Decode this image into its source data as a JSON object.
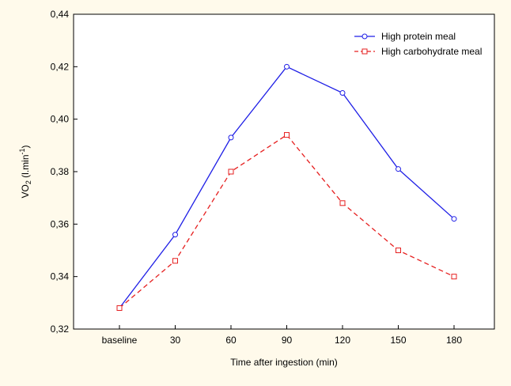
{
  "chart_data": {
    "type": "line",
    "title": "",
    "xlabel": "Time after ingestion (min)",
    "ylabel": "VO2 (l.min-1)",
    "ylabel_parts": {
      "base": "VO",
      "sub": "2",
      "rest": " (l.min",
      "sup": "-1",
      "end": ")"
    },
    "categories": [
      "baseline",
      "30",
      "60",
      "90",
      "120",
      "150",
      "180"
    ],
    "ylim": [
      0.32,
      0.44
    ],
    "yticks": [
      0.32,
      0.34,
      0.36,
      0.38,
      0.4,
      0.42,
      0.44
    ],
    "ytick_labels": [
      "0,32",
      "0,34",
      "0,36",
      "0,38",
      "0,40",
      "0,42",
      "0,44"
    ],
    "grid": false,
    "legend_position": "top-right",
    "series": [
      {
        "name": "High protein meal",
        "values": [
          0.328,
          0.356,
          0.393,
          0.42,
          0.41,
          0.381,
          0.362
        ],
        "color": "#1f1fe6",
        "line_style": "solid",
        "marker": "circle"
      },
      {
        "name": "High carbohydrate meal",
        "values": [
          0.328,
          0.346,
          0.38,
          0.394,
          0.368,
          0.35,
          0.34
        ],
        "color": "#e62020",
        "line_style": "dashed",
        "marker": "square"
      }
    ]
  }
}
